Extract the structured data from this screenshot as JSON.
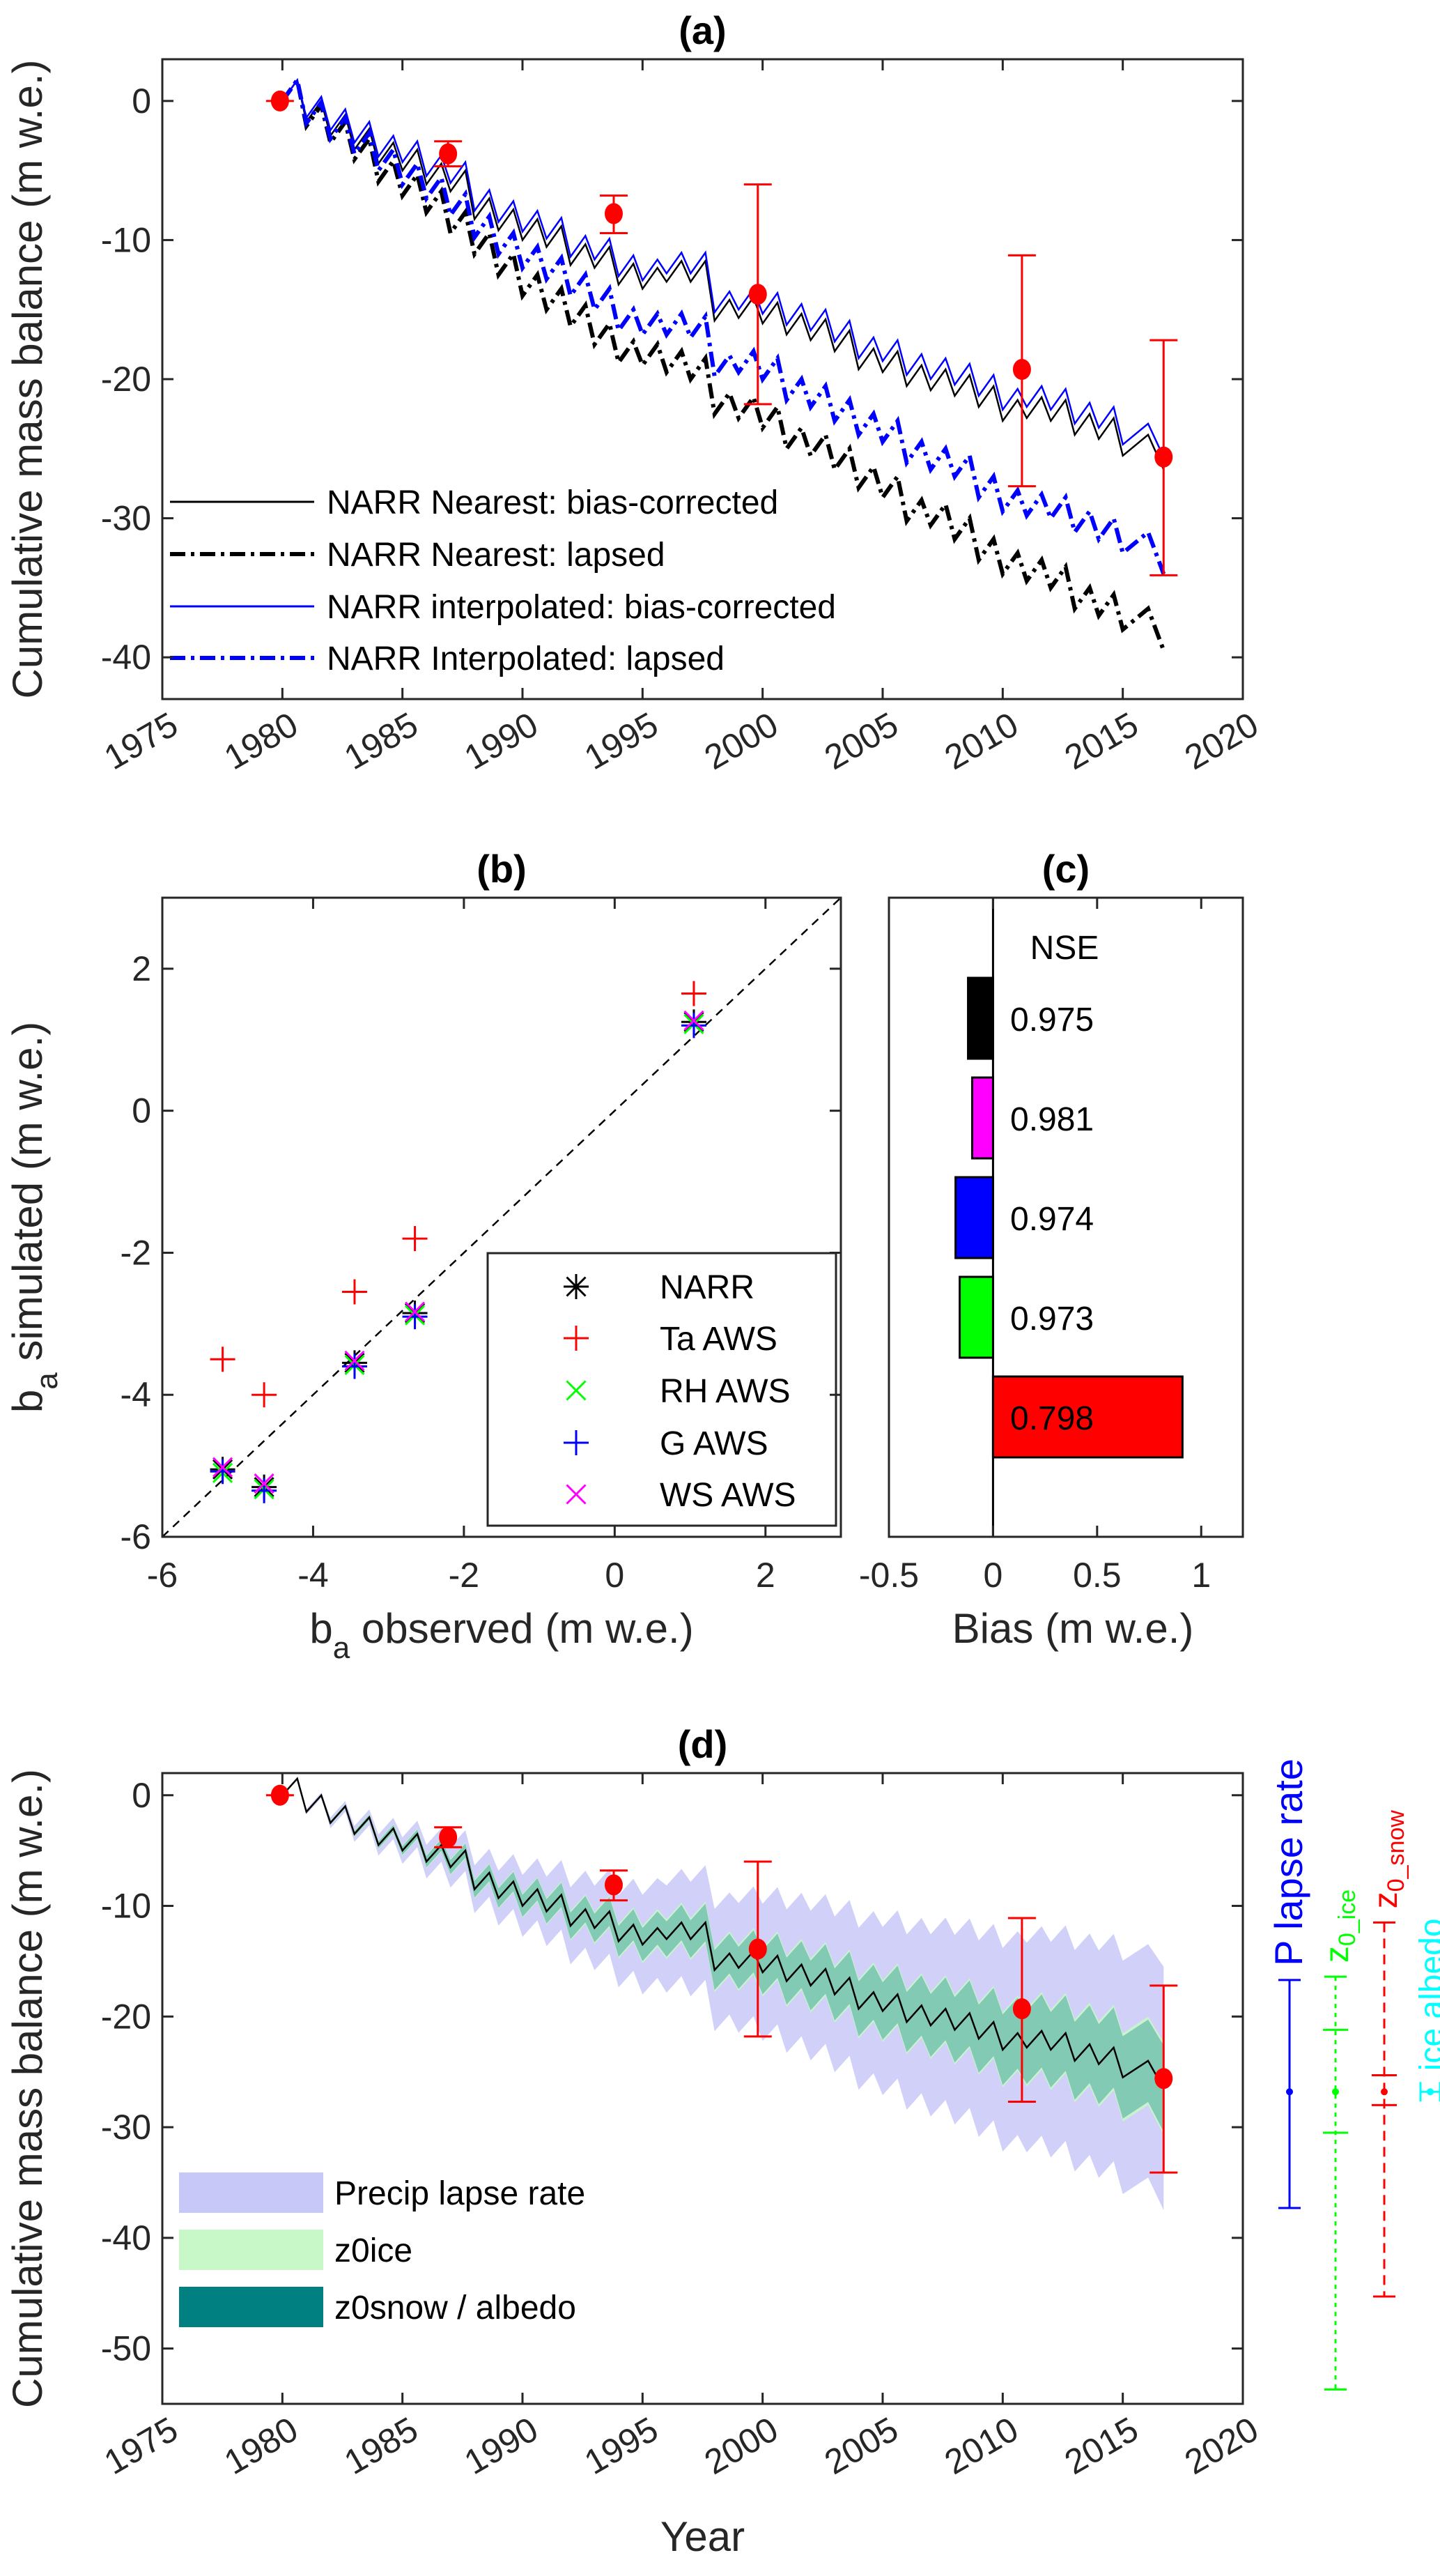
{
  "chart_data": [
    {
      "panel": "a",
      "type": "line",
      "title": "(a)",
      "ylabel": "Cumulative mass balance (m w.e.)",
      "xlabel": "",
      "xlim": [
        1975,
        2020
      ],
      "ylim": [
        -43,
        3
      ],
      "xticks": [
        "1975",
        "1980",
        "1985",
        "1990",
        "1995",
        "2000",
        "2005",
        "2010",
        "2015",
        "2020"
      ],
      "yticks": [
        "0",
        "-10",
        "-20",
        "-30",
        "-40"
      ],
      "legend_position": "bottom-left",
      "x": [
        1980,
        1981,
        1982,
        1983,
        1984,
        1985,
        1986,
        1987,
        1988,
        1989,
        1990,
        1991,
        1992,
        1993,
        1994,
        1995,
        1996,
        1997,
        1998,
        1999,
        2000,
        2001,
        2002,
        2003,
        2004,
        2005,
        2006,
        2007,
        2008,
        2009,
        2010,
        2011,
        2012,
        2013,
        2014,
        2015,
        2016.7
      ],
      "series": [
        {
          "name": "NARR Nearest: bias-corrected",
          "color": "#000000",
          "style": "solid",
          "values": [
            0,
            -1.5,
            -2.5,
            -3.5,
            -4.5,
            -5,
            -6,
            -6.5,
            -8.5,
            -9.3,
            -10,
            -10.5,
            -11.8,
            -12,
            -13.2,
            -13.5,
            -13,
            -13,
            -15.8,
            -15.6,
            -16,
            -16.8,
            -17.2,
            -18,
            -19.3,
            -19.5,
            -20.5,
            -20.8,
            -21.2,
            -22,
            -23,
            -22.8,
            -23,
            -24,
            -24.3,
            -25.5,
            -26.5
          ]
        },
        {
          "name": "NARR Nearest: lapsed",
          "color": "#000000",
          "style": "dashdot",
          "values": [
            0,
            -1.8,
            -3,
            -4.2,
            -5.8,
            -6.8,
            -8,
            -9.5,
            -11,
            -12.5,
            -14,
            -15,
            -16.2,
            -17.5,
            -18.8,
            -19,
            -19.5,
            -20,
            -22.5,
            -22.8,
            -23.5,
            -25,
            -25.5,
            -26.5,
            -27.8,
            -28.5,
            -30.2,
            -30.5,
            -31.5,
            -33,
            -34,
            -34.5,
            -35,
            -36.5,
            -37,
            -38,
            -39.5
          ]
        },
        {
          "name": "NARR interpolated: bias-corrected",
          "color": "#0000ff",
          "style": "solid",
          "values": [
            0,
            -1.2,
            -2.1,
            -3,
            -4,
            -4.4,
            -5.4,
            -5.9,
            -7.9,
            -8.7,
            -9.4,
            -9.9,
            -11.2,
            -11.4,
            -12.6,
            -12.9,
            -12.4,
            -12.4,
            -15.2,
            -15,
            -15.3,
            -16.1,
            -16.5,
            -17.3,
            -18.5,
            -18.7,
            -19.7,
            -20,
            -20.4,
            -21.2,
            -22.2,
            -22,
            -22.2,
            -23.2,
            -23.5,
            -24.7,
            -25.6
          ]
        },
        {
          "name": "NARR Interpolated: lapsed",
          "color": "#0000ff",
          "style": "dashdot",
          "values": [
            0,
            -1.6,
            -2.7,
            -3.8,
            -5,
            -6,
            -7,
            -8.2,
            -9.8,
            -11,
            -12,
            -12.8,
            -14,
            -15,
            -16.5,
            -16.8,
            -16.8,
            -17,
            -19.8,
            -19.5,
            -20,
            -21.5,
            -22,
            -23,
            -24,
            -24.5,
            -26,
            -26.5,
            -27,
            -28.5,
            -29.5,
            -29.8,
            -30,
            -31,
            -31.5,
            -32.5,
            -34
          ]
        }
      ],
      "observations": {
        "color": "#ff0000",
        "x": [
          1979.9,
          1986.9,
          1993.8,
          1999.8,
          2010.8,
          2016.7
        ],
        "y": [
          0,
          -3.8,
          -8.1,
          -13.9,
          -19.3,
          -25.6
        ],
        "err_low": [
          0,
          -4.7,
          -9.5,
          -21.8,
          -27.7,
          -34.1
        ],
        "err_high": [
          0,
          -2.9,
          -6.8,
          -6.0,
          -11.1,
          -17.2
        ]
      }
    },
    {
      "panel": "b",
      "type": "scatter",
      "title": "(b)",
      "xlabel": "b_a observed (m w.e.)",
      "xlabel_parts": [
        "b",
        "a",
        " observed (m w.e.)"
      ],
      "ylabel_parts": [
        "b",
        "a",
        " simulated (m w.e.)"
      ],
      "xlim": [
        -6,
        3
      ],
      "ylim": [
        -6,
        3
      ],
      "xticks": [
        "-6",
        "-4",
        "-2",
        "0",
        "2"
      ],
      "yticks": [
        "-6",
        "-4",
        "-2",
        "0",
        "2"
      ],
      "one_to_one_line": true,
      "legend_position": "bottom-right",
      "x": [
        1.05,
        -2.65,
        -3.45,
        -5.2,
        -4.65
      ],
      "series": [
        {
          "name": "NARR",
          "marker": "asterisk",
          "color": "#000000",
          "values": [
            1.25,
            -2.85,
            -3.55,
            -5.05,
            -5.3
          ]
        },
        {
          "name": "Ta AWS",
          "marker": "plus",
          "color": "#ff0000",
          "values": [
            1.65,
            -1.8,
            -2.55,
            -3.5,
            -4.0
          ]
        },
        {
          "name": "RH AWS",
          "marker": "x",
          "color": "#00ff00",
          "values": [
            1.22,
            -2.88,
            -3.58,
            -5.1,
            -5.33
          ]
        },
        {
          "name": "G AWS",
          "marker": "plus",
          "color": "#0000ff",
          "values": [
            1.2,
            -2.9,
            -3.6,
            -5.08,
            -5.35
          ]
        },
        {
          "name": "WS AWS",
          "marker": "x",
          "color": "#ff00ff",
          "values": [
            1.27,
            -2.83,
            -3.52,
            -5.02,
            -5.25
          ]
        }
      ]
    },
    {
      "panel": "c",
      "type": "bar",
      "orientation": "horizontal",
      "title": "(c)",
      "xlabel": "Bias (m w.e.)",
      "xlim": [
        -0.5,
        1.2
      ],
      "xticks": [
        "-0.5",
        "0",
        "0.5",
        "1"
      ],
      "header": "NSE",
      "bars": [
        {
          "color": "#000000",
          "bias": -0.12,
          "nse": "0.975"
        },
        {
          "color": "#ff00ff",
          "bias": -0.1,
          "nse": "0.981"
        },
        {
          "color": "#0000ff",
          "bias": -0.18,
          "nse": "0.974"
        },
        {
          "color": "#00ff00",
          "bias": -0.16,
          "nse": "0.973"
        },
        {
          "color": "#ff0000",
          "bias": 0.91,
          "nse": "0.798"
        }
      ]
    },
    {
      "panel": "d",
      "type": "area",
      "title": "(d)",
      "ylabel": "Cumulative mass balance (m w.e.)",
      "xlabel": "Year",
      "xlim": [
        1975,
        2020
      ],
      "ylim": [
        -55,
        2
      ],
      "xticks": [
        "1975",
        "1980",
        "1985",
        "1990",
        "1995",
        "2000",
        "2005",
        "2010",
        "2015",
        "2020"
      ],
      "yticks": [
        "0",
        "-10",
        "-20",
        "-30",
        "-40",
        "-50"
      ],
      "legend_position": "bottom-left",
      "band_years": [
        1980,
        1985,
        1990,
        1995,
        2000,
        2005,
        2010,
        2016.7
      ],
      "bands": [
        {
          "name": "Precip lapse rate",
          "color": "#c8c8f8",
          "half_width": [
            0,
            1.2,
            2.8,
            4.5,
            6.2,
            7.6,
            9.2,
            11
          ]
        },
        {
          "name": "z0ice",
          "color": "#c8f8c8",
          "half_width": [
            0,
            0.5,
            1.1,
            1.7,
            2.2,
            2.8,
            3.4,
            4.2
          ]
        },
        {
          "name": "z0snow / albedo",
          "color": "#008080",
          "half_width": [
            0,
            0.4,
            1.0,
            1.5,
            2.0,
            2.6,
            3.2,
            3.9
          ]
        }
      ],
      "line_color": "#000000",
      "sensitivity_bars": [
        {
          "label": "P lapse rate",
          "color": "#0000ff",
          "style": "solid",
          "center": -26.8,
          "low": -37.3,
          "high": -16.7,
          "caps": []
        },
        {
          "label": "z0_ice",
          "label_main": "z",
          "label_sub": "0_ice",
          "color": "#00ff00",
          "style": "dotted",
          "center": -26.8,
          "low": -53.7,
          "high": -16.4,
          "caps": [
            -21.2,
            -30.5
          ]
        },
        {
          "label": "z0_snow",
          "label_main": "z",
          "label_sub": "0_snow",
          "color": "#ff0000",
          "style": "dashed",
          "center": -26.8,
          "low": -45.3,
          "high": -11.5,
          "caps": [
            -25.3,
            -28.0
          ]
        },
        {
          "label": "ice albedo",
          "color": "#00ffff",
          "style": "solid",
          "center": -26.8,
          "low": -26.8,
          "high": -26.8,
          "caps": []
        }
      ]
    }
  ]
}
